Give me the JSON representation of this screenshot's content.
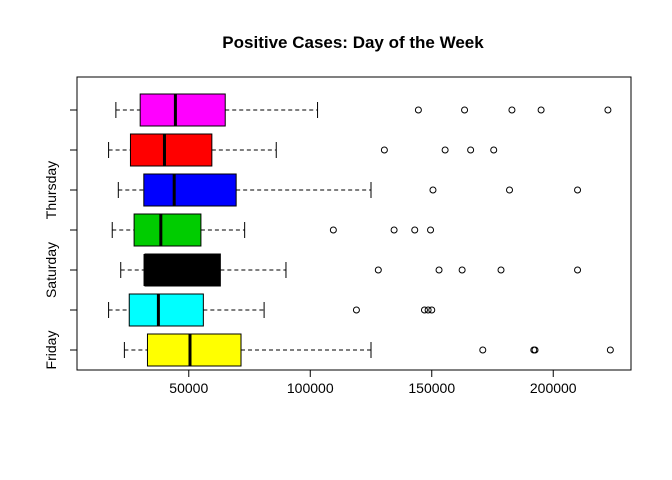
{
  "chart_data": {
    "type": "boxplot",
    "title": "Positive Cases: Day of the Week",
    "orientation": "horizontal",
    "xlim": [
      4000,
      232000
    ],
    "x_ticks": [
      50000,
      100000,
      150000,
      200000
    ],
    "x_tick_labels": [
      "50000",
      "100000",
      "150000",
      "200000"
    ],
    "grid": false,
    "legend": "none",
    "categories": [
      "Friday",
      "",
      "Saturday",
      "",
      "Thursday",
      "",
      ""
    ],
    "boxes": [
      {
        "category": "Friday",
        "color": "#ffff00",
        "whisker_low": 23500,
        "q1": 33000,
        "median": 50500,
        "q3": 71500,
        "whisker_high": 125000,
        "outliers": [
          171000,
          192000,
          192500,
          223500
        ]
      },
      {
        "category": "",
        "color": "#00ffff",
        "whisker_low": 17000,
        "q1": 25500,
        "median": 37500,
        "q3": 56000,
        "whisker_high": 81000,
        "outliers": [
          119000,
          147000,
          148500,
          150000
        ]
      },
      {
        "category": "Saturday",
        "color": "#000000",
        "whisker_low": 22000,
        "q1": 32000,
        "median": 32000,
        "q3": 63000,
        "whisker_high": 90000,
        "outliers": [
          128000,
          153000,
          162500,
          178500,
          210000
        ]
      },
      {
        "category": "",
        "color": "#00cc00",
        "whisker_low": 18500,
        "q1": 27500,
        "median": 38500,
        "q3": 55000,
        "whisker_high": 73000,
        "outliers": [
          109500,
          134500,
          143000,
          149500
        ]
      },
      {
        "category": "Thursday",
        "color": "#0000ff",
        "whisker_low": 21000,
        "q1": 31500,
        "median": 44000,
        "q3": 69500,
        "whisker_high": 125000,
        "outliers": [
          150500,
          182000,
          210000
        ]
      },
      {
        "category": "",
        "color": "#ff0000",
        "whisker_low": 17000,
        "q1": 26000,
        "median": 40000,
        "q3": 59500,
        "whisker_high": 86000,
        "outliers": [
          130500,
          155500,
          166000,
          175500
        ]
      },
      {
        "category": "",
        "color": "#ff00ff",
        "whisker_low": 20000,
        "q1": 30000,
        "median": 44500,
        "q3": 65000,
        "whisker_high": 103000,
        "outliers": [
          144500,
          163500,
          183000,
          195000,
          222500
        ]
      }
    ]
  }
}
